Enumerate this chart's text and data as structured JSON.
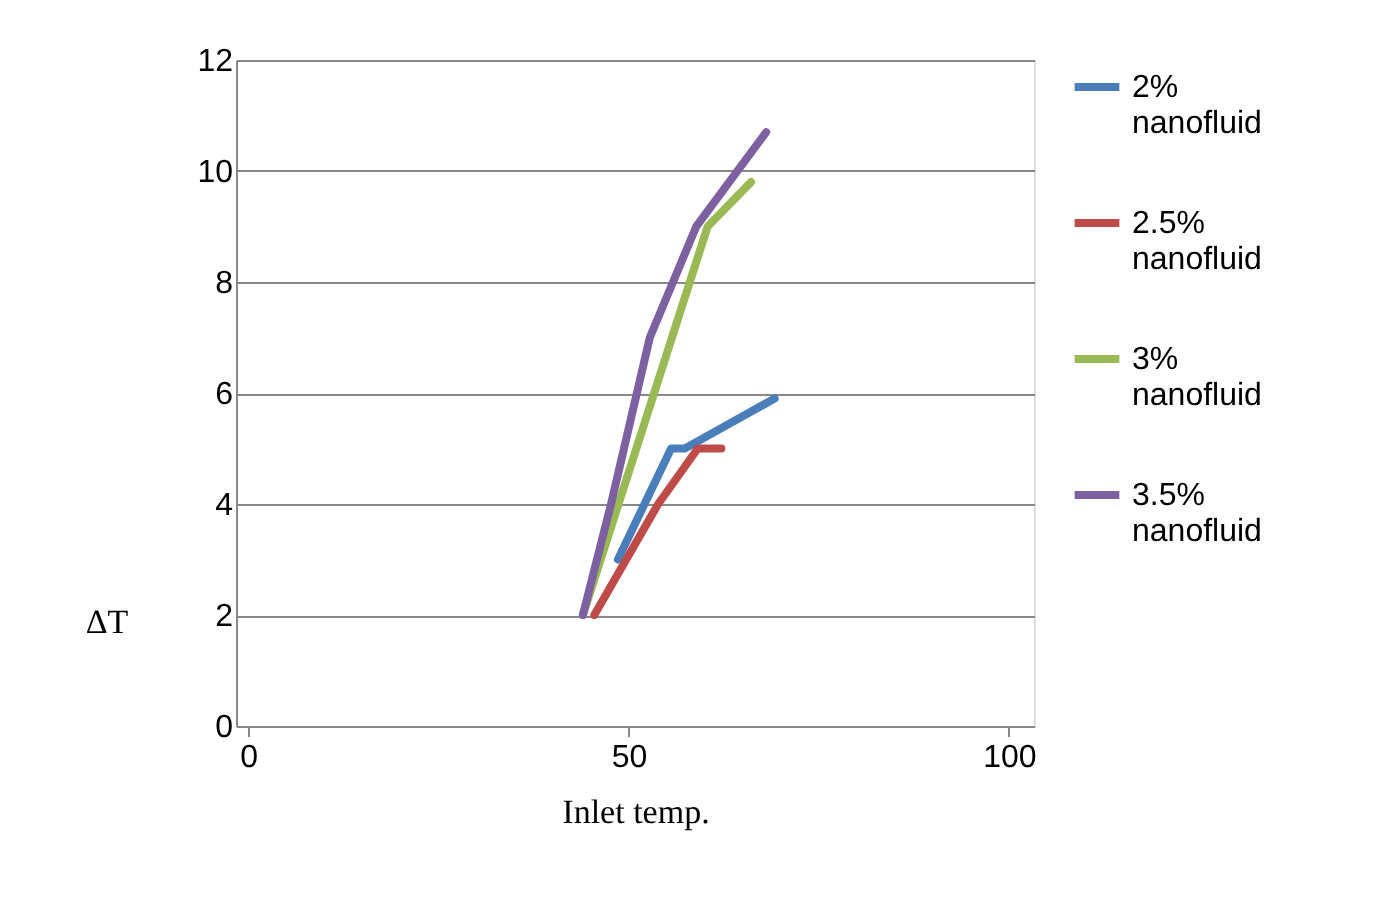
{
  "chart_data": {
    "type": "line",
    "xlabel": "Inlet temp.",
    "ylabel": "ΔT",
    "series": [
      {
        "name": "2% nanofluid",
        "color": "#4a7ebb",
        "x": [
          48.6,
          55.6,
          57.4,
          69.2
        ],
        "values": [
          3,
          5,
          5,
          5.9
        ]
      },
      {
        "name": "2.5% nanofluid",
        "color": "#be4b48",
        "x": [
          45.5,
          53.9,
          59.1,
          62.2
        ],
        "values": [
          2,
          4,
          5,
          5
        ]
      },
      {
        "name": "3% nanofluid",
        "color": "#98b954",
        "x": [
          44,
          60.4,
          66.1
        ],
        "values": [
          2,
          9,
          9.8
        ]
      },
      {
        "name": "3.5% nanofluid",
        "color": "#7d60a0",
        "x": [
          44,
          47.7,
          52.8,
          58.9,
          68.1
        ],
        "values": [
          2,
          4,
          7,
          9,
          10.7
        ]
      }
    ],
    "xlim": [
      -1.6,
      103.3
    ],
    "xticks": [
      0,
      50,
      100
    ],
    "ylim": [
      0,
      12
    ],
    "yticks": [
      0,
      2,
      4,
      6,
      8,
      10,
      12
    ],
    "grid": "y",
    "legend": "right",
    "marker": "none",
    "line_style": "solid"
  }
}
